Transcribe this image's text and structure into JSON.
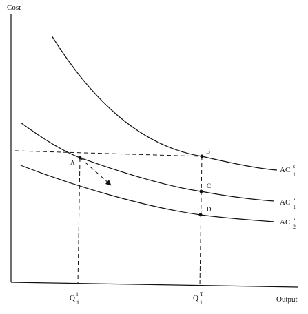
{
  "axes": {
    "y_label": "Cost",
    "x_label": "Output"
  },
  "curves": [
    {
      "base": "AC",
      "sup": "s",
      "sub": "1"
    },
    {
      "base": "AC",
      "sup": "x",
      "sub": "1"
    },
    {
      "base": "AC",
      "sup": "x",
      "sub": "2"
    }
  ],
  "points": [
    "A",
    "B",
    "C",
    "D"
  ],
  "quantities": [
    {
      "base": "Q",
      "sup": "i",
      "sub": "1"
    },
    {
      "base": "Q",
      "sup": "T",
      "sub": "1"
    }
  ]
}
